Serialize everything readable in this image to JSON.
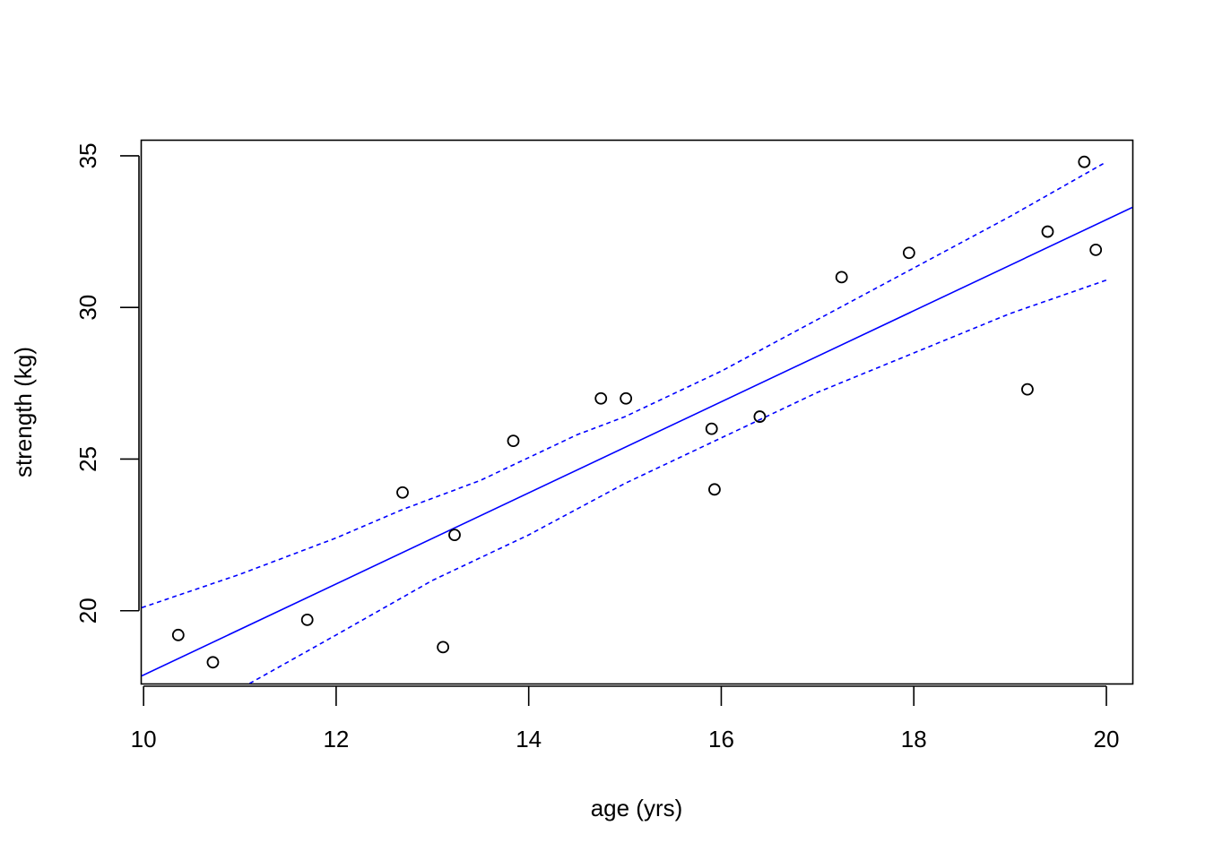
{
  "chart_data": {
    "type": "scatter",
    "xlabel": "age (yrs)",
    "ylabel": "strength (kg)",
    "xlim": [
      9.98,
      20.27
    ],
    "ylim": [
      17.6,
      35.5
    ],
    "x_ticks": [
      10,
      12,
      14,
      16,
      18,
      20
    ],
    "y_ticks": [
      20,
      25,
      30,
      35
    ],
    "grid": false,
    "line_color": "#0000ff",
    "point_color": "#000000",
    "points": [
      {
        "x": 10.36,
        "y": 19.2
      },
      {
        "x": 10.72,
        "y": 18.3
      },
      {
        "x": 11.7,
        "y": 19.7
      },
      {
        "x": 12.69,
        "y": 23.9
      },
      {
        "x": 13.11,
        "y": 18.8
      },
      {
        "x": 13.23,
        "y": 22.5
      },
      {
        "x": 13.84,
        "y": 25.6
      },
      {
        "x": 14.75,
        "y": 27.0
      },
      {
        "x": 15.01,
        "y": 27.0
      },
      {
        "x": 15.9,
        "y": 26.0
      },
      {
        "x": 15.93,
        "y": 24.0
      },
      {
        "x": 16.4,
        "y": 26.4
      },
      {
        "x": 17.25,
        "y": 31.0
      },
      {
        "x": 17.95,
        "y": 31.8
      },
      {
        "x": 19.18,
        "y": 27.3
      },
      {
        "x": 19.39,
        "y": 32.5
      },
      {
        "x": 19.77,
        "y": 34.8
      },
      {
        "x": 19.89,
        "y": 31.9
      }
    ],
    "fit_line": {
      "x": [
        9.98,
        20.27
      ],
      "y": [
        17.85,
        33.3
      ]
    },
    "upper_band": {
      "x": [
        9.98,
        11.0,
        12.0,
        12.7,
        13.5,
        14.5,
        15.0,
        16.0,
        17.0,
        18.0,
        19.0,
        20.0
      ],
      "y": [
        20.1,
        21.2,
        22.4,
        23.35,
        24.3,
        25.8,
        26.4,
        27.9,
        29.6,
        31.3,
        33.0,
        34.8
      ]
    },
    "lower_band": {
      "x": [
        11.1,
        12.0,
        13.0,
        14.0,
        15.0,
        16.0,
        17.0,
        18.0,
        19.0,
        20.0
      ],
      "y": [
        17.6,
        19.2,
        21.0,
        22.5,
        24.2,
        25.7,
        27.2,
        28.5,
        29.8,
        30.9
      ]
    }
  }
}
